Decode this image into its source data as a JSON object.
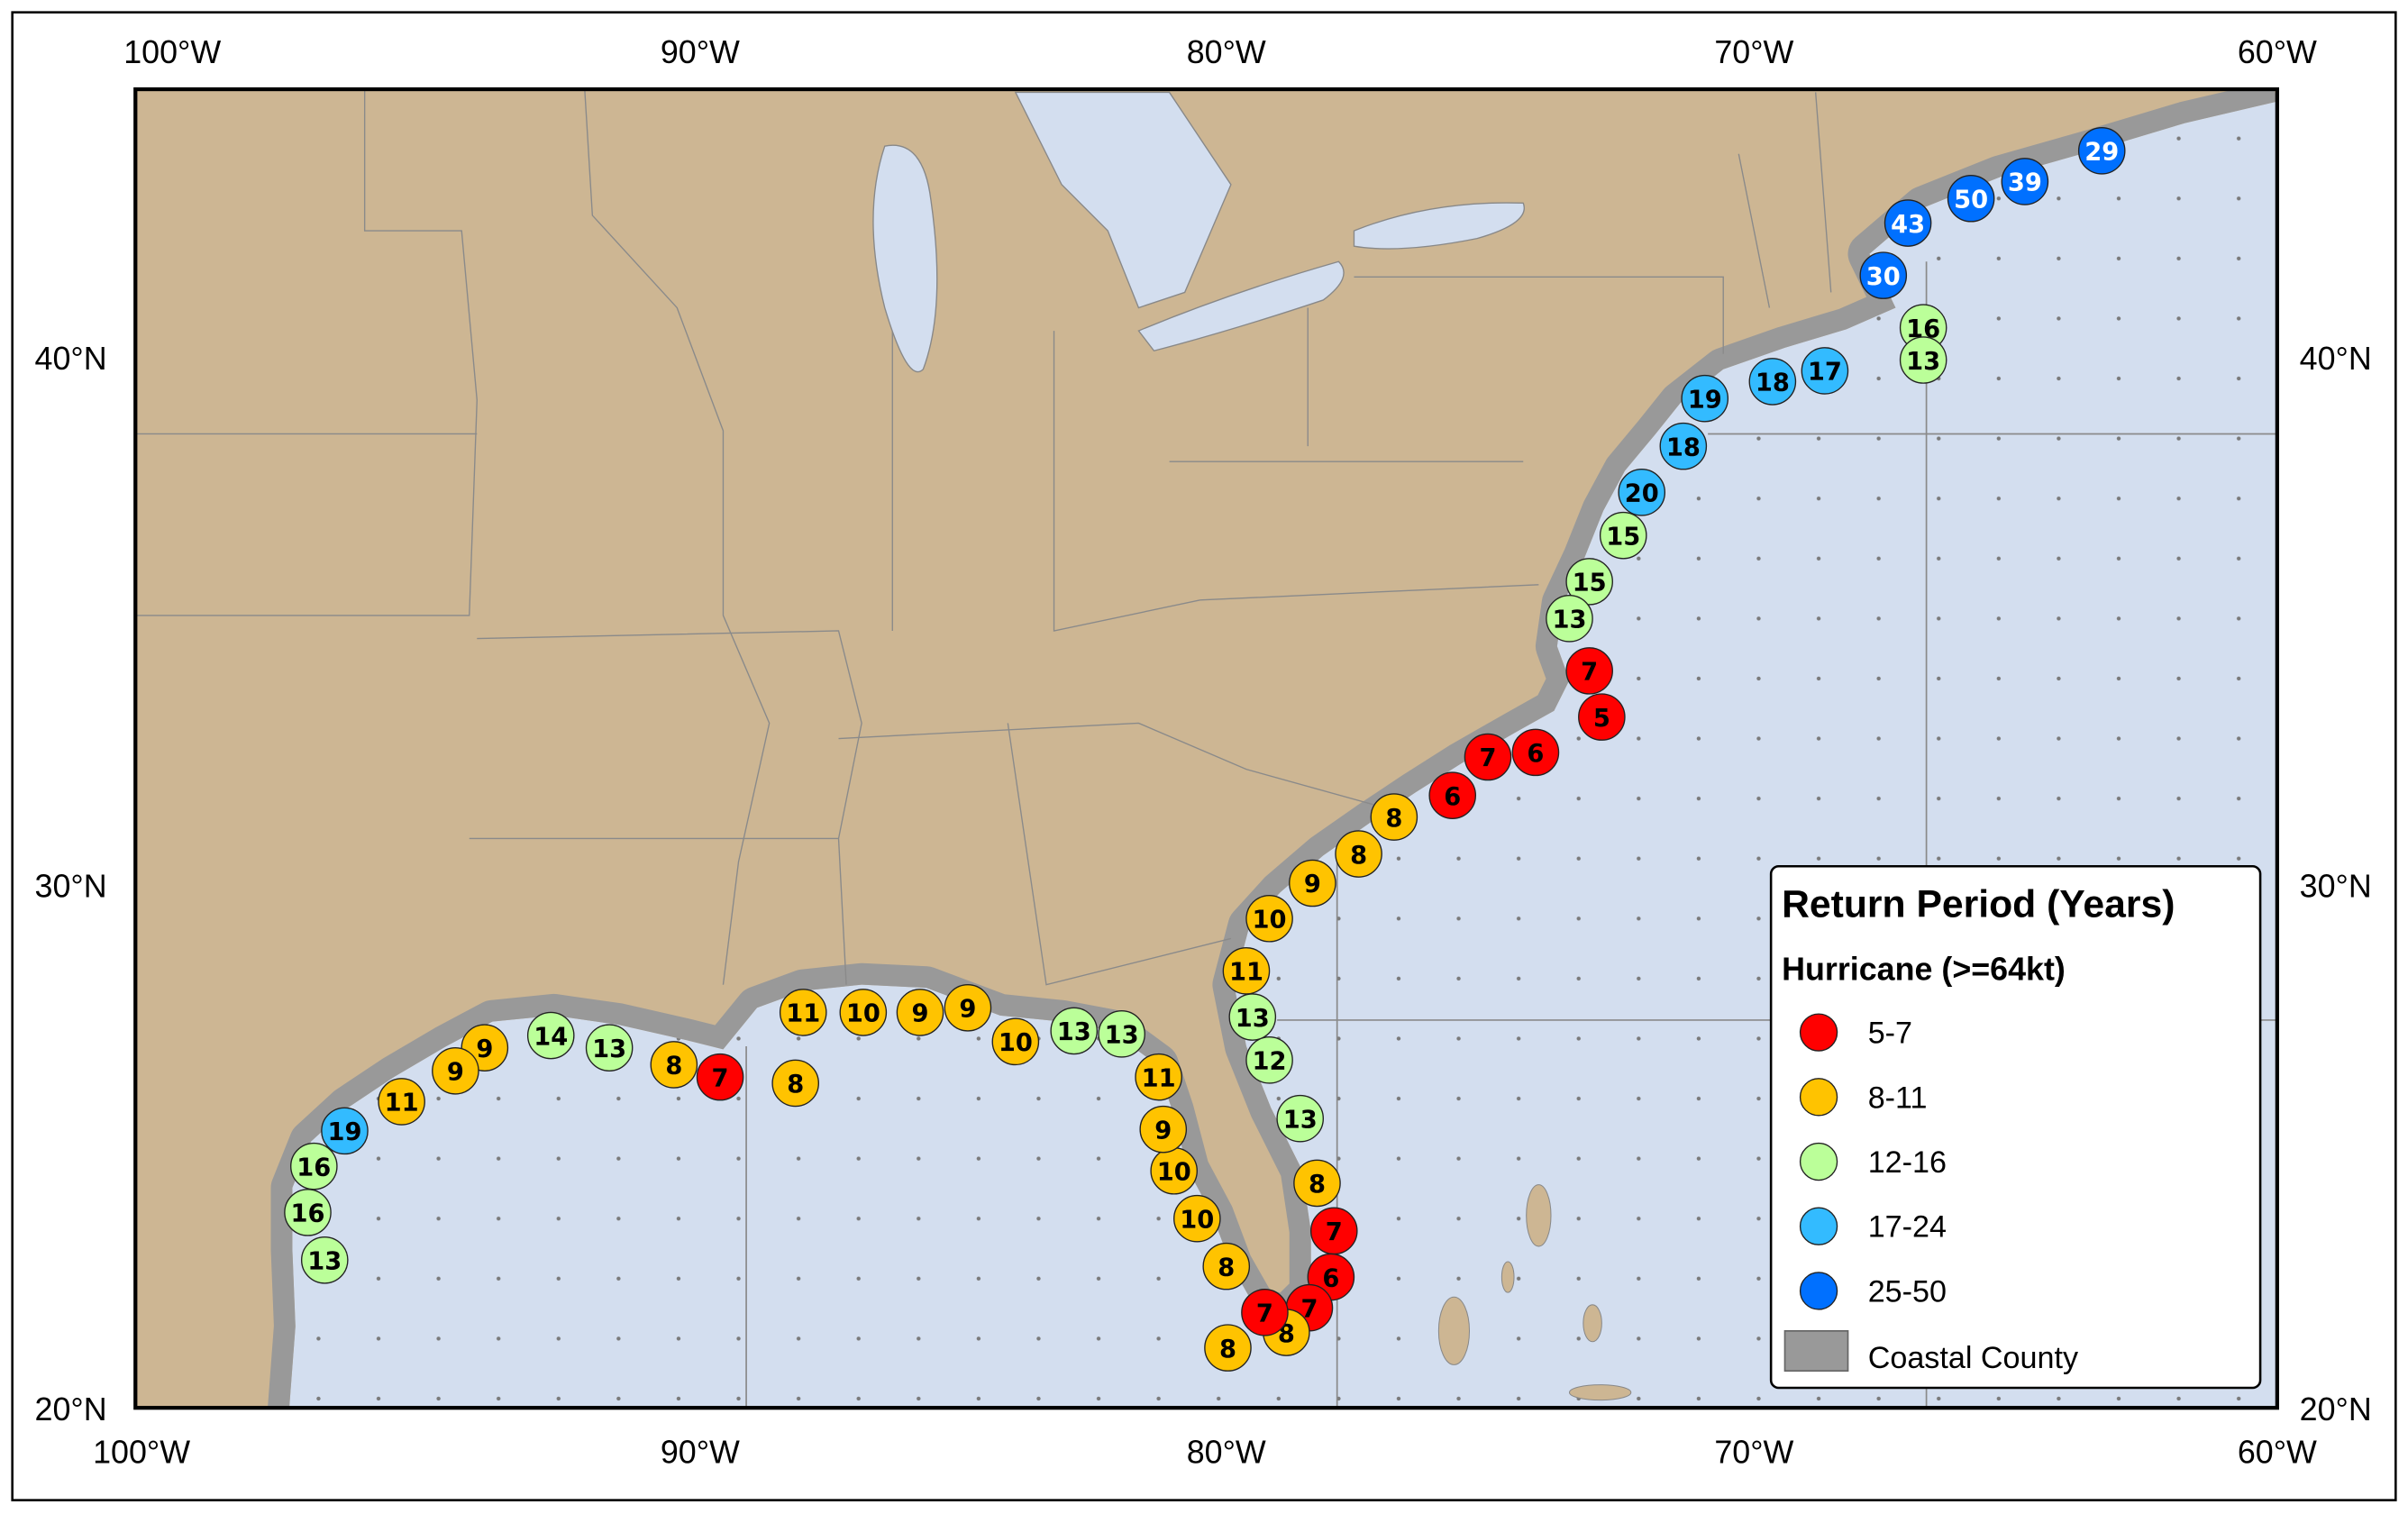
{
  "axes": {
    "lon_labels": [
      "100°W",
      "90°W",
      "80°W",
      "70°W",
      "60°W"
    ],
    "lat_labels": [
      "40°N",
      "30°N",
      "20°N"
    ]
  },
  "legend": {
    "title": "Return Period (Years)",
    "subtitle": "Hurricane (>=64kt)",
    "classes": [
      {
        "label": "5-7",
        "color": "#ff0000"
      },
      {
        "label": "8-11",
        "color": "#ffc300"
      },
      {
        "label": "12-16",
        "color": "#bbff99"
      },
      {
        "label": "17-24",
        "color": "#33bbff"
      },
      {
        "label": "25-50",
        "color": "#0070ff"
      }
    ],
    "coastal_county_label": "Coastal County",
    "coastal_county_color": "#999999"
  },
  "colors": {
    "land": "#cdb693",
    "ocean": "#d3deef",
    "county": "#999999"
  },
  "markers": [
    29,
    39,
    50,
    43,
    30,
    16,
    13,
    17,
    18,
    19,
    18,
    20,
    15,
    15,
    13,
    7,
    5,
    6,
    7,
    6,
    8,
    8,
    9,
    10,
    11,
    13,
    12,
    13,
    8,
    7,
    6,
    7,
    8,
    7,
    8,
    8,
    10,
    10,
    9,
    11,
    13,
    13,
    10,
    9,
    9,
    10,
    11,
    8,
    7,
    8,
    13,
    14,
    9,
    9,
    11,
    19,
    16,
    16,
    13
  ]
}
